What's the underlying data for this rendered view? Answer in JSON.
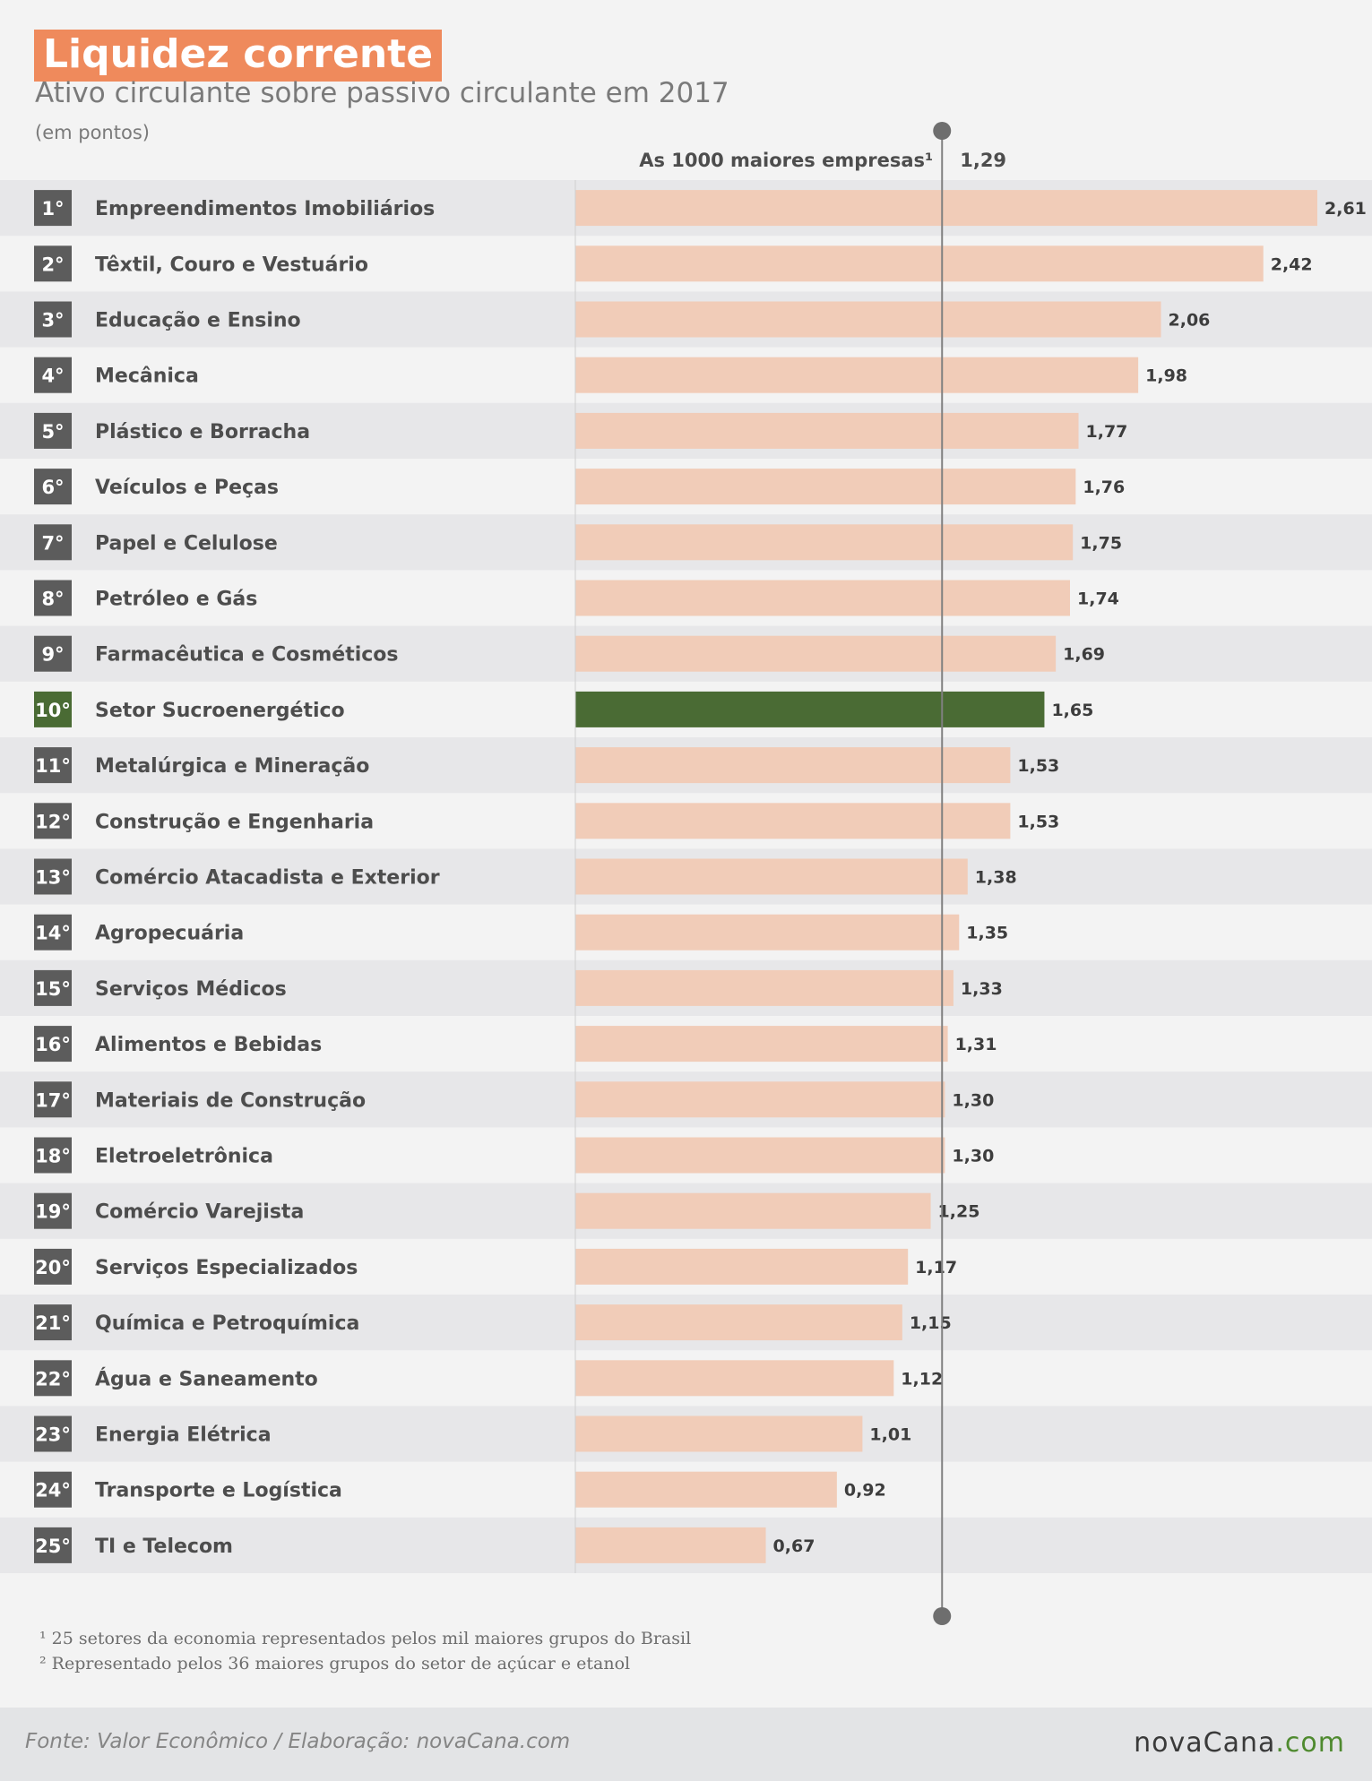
{
  "title": "Liquidez corrente",
  "subtitle": "Ativo circulante sobre passivo circulante em 2017",
  "unit_note": "(em pontos)",
  "colors": {
    "title_bg": "#ef8a5c",
    "bar": "#f1ccb8",
    "highlight": "#4a6b34",
    "rank_box": "#5c5c5c",
    "stripe": "#e7e7e9"
  },
  "chart_data": {
    "type": "bar",
    "orientation": "horizontal",
    "title": "Liquidez corrente",
    "subtitle": "Ativo circulante sobre passivo circulante em 2017",
    "unit": "(em pontos)",
    "reference_line": {
      "label": "As 1000 maiores empresas¹",
      "value_label": "1,29",
      "value": 1.29
    },
    "highlight_index": 9,
    "ranks": [
      "1°",
      "2°",
      "3°",
      "4°",
      "5°",
      "6°",
      "7°",
      "8°",
      "9°",
      "10°",
      "11°",
      "12°",
      "13°",
      "14°",
      "15°",
      "16°",
      "17°",
      "18°",
      "19°",
      "20°",
      "21°",
      "22°",
      "23°",
      "24°",
      "25°"
    ],
    "categories": [
      "Empreendimentos Imobiliários",
      "Têxtil, Couro e Vestuário",
      "Educação e Ensino",
      "Mecânica",
      "Plástico e Borracha",
      "Veículos e Peças",
      "Papel e Celulose",
      "Petróleo e Gás",
      "Farmacêutica e Cosméticos",
      "Setor Sucroenergético",
      "Metalúrgica e Mineração",
      "Construção e Engenharia",
      "Comércio Atacadista e Exterior",
      "Agropecuária",
      "Serviços Médicos",
      "Alimentos e Bebidas",
      "Materiais de Construção",
      "Eletroeletrônica",
      "Comércio Varejista",
      "Serviços Especializados",
      "Química e Petroquímica",
      "Água e Saneamento",
      "Energia Elétrica",
      "Transporte e Logística",
      "TI e Telecom"
    ],
    "values": [
      2.61,
      2.42,
      2.06,
      1.98,
      1.77,
      1.76,
      1.75,
      1.74,
      1.69,
      1.65,
      1.53,
      1.53,
      1.38,
      1.35,
      1.33,
      1.31,
      1.3,
      1.3,
      1.25,
      1.17,
      1.15,
      1.12,
      1.01,
      0.92,
      0.67
    ],
    "value_labels": [
      "2,61",
      "2,42",
      "2,06",
      "1,98",
      "1,77",
      "1,76",
      "1,75",
      "1,74",
      "1,69",
      "1,65",
      "1,53",
      "1,53",
      "1,38",
      "1,35",
      "1,33",
      "1,31",
      "1,30",
      "1,30",
      "1,25",
      "1,17",
      "1,15",
      "1,12",
      "1,01",
      "0,92",
      "0,67"
    ],
    "xlim": [
      0,
      2.61
    ]
  },
  "footnotes": {
    "note1": "¹ 25 setores da economia representados pelos mil maiores grupos do Brasil",
    "note2": "² Representado pelos 36 maiores grupos do setor de açúcar e etanol"
  },
  "footer": {
    "source": "Fonte: Valor Econômico / Elaboração: novaCana.com",
    "logo_main": "novaCana",
    "logo_domain": ".com"
  }
}
